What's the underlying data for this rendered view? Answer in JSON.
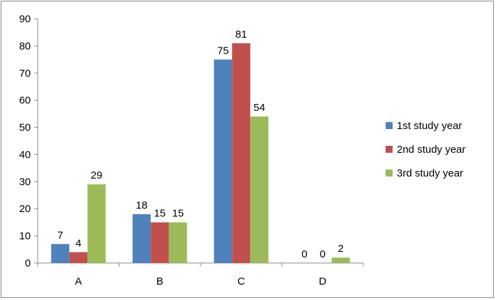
{
  "chart_data": {
    "type": "bar",
    "categories": [
      "A",
      "B",
      "C",
      "D"
    ],
    "series": [
      {
        "name": "1st study year",
        "values": [
          7,
          18,
          75,
          0
        ],
        "color": "#4F81BD"
      },
      {
        "name": "2nd study year",
        "values": [
          4,
          15,
          81,
          0
        ],
        "color": "#C0504D"
      },
      {
        "name": "3rd study year",
        "values": [
          29,
          15,
          54,
          2
        ],
        "color": "#9BBB59"
      }
    ],
    "title": "",
    "xlabel": "",
    "ylabel": "",
    "ylim": [
      0,
      90
    ],
    "yticks": [
      0,
      10,
      20,
      30,
      40,
      50,
      60,
      70,
      80,
      90
    ],
    "grid": false,
    "legend_position": "right"
  }
}
